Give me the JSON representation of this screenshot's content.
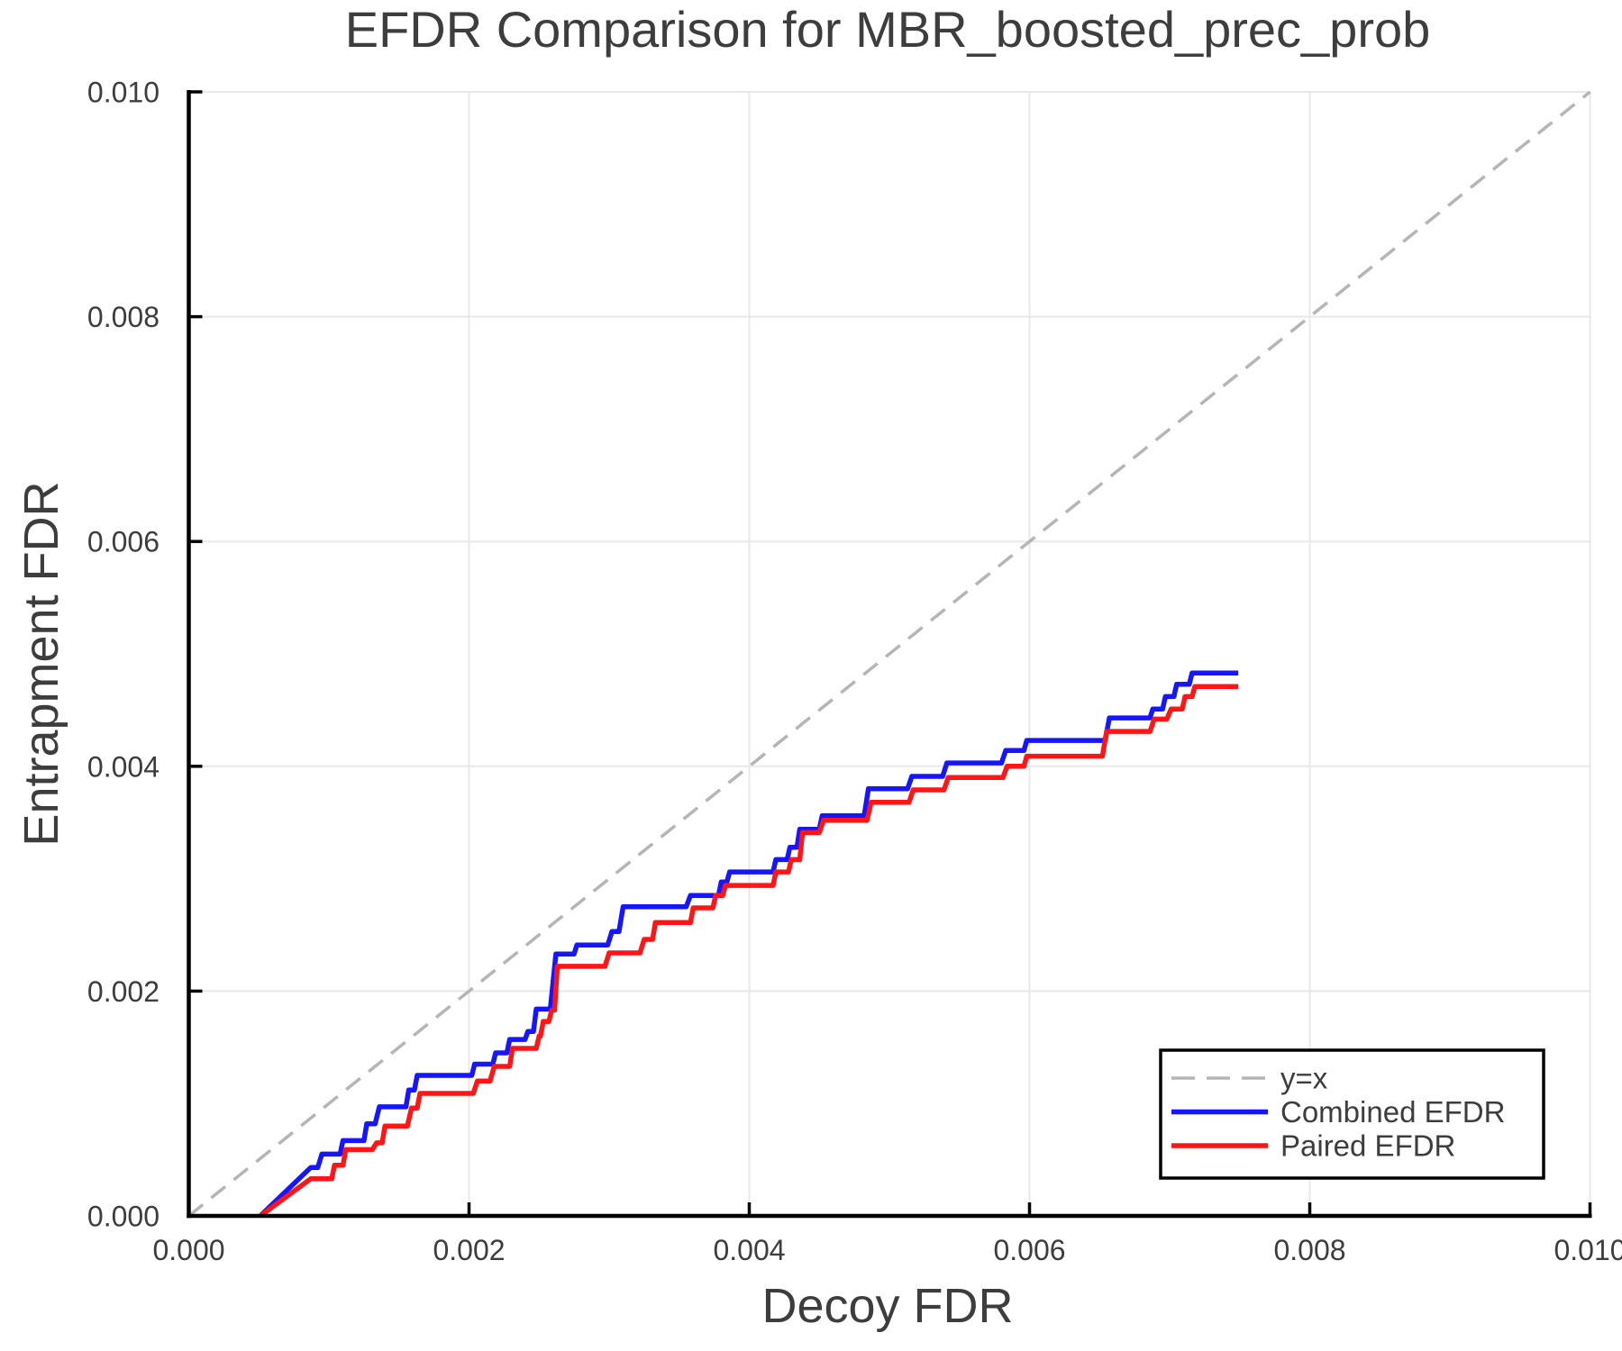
{
  "page": {
    "background": "#ffffff"
  },
  "chart_data": {
    "type": "line",
    "title": "EFDR Comparison for MBR_boosted_prec_prob",
    "xlabel": "Decoy FDR",
    "ylabel": "Entrapment FDR",
    "xlim": [
      0.0,
      0.01
    ],
    "ylim": [
      0.0,
      0.01
    ],
    "grid": true,
    "xticks": {
      "values": [
        0.0,
        0.002,
        0.004,
        0.006,
        0.008,
        0.01
      ],
      "labels": [
        "0.000",
        "0.002",
        "0.004",
        "0.006",
        "0.008",
        "0.010"
      ]
    },
    "yticks": {
      "values": [
        0.0,
        0.002,
        0.004,
        0.006,
        0.008,
        0.01
      ],
      "labels": [
        "0.000",
        "0.002",
        "0.004",
        "0.006",
        "0.008",
        "0.010"
      ]
    },
    "colors": {
      "grid": "#e8e8e8",
      "axis": "#000000",
      "text": "#3d3d3d",
      "reference": "#b5b5b5",
      "combined": "#1515ff",
      "paired": "#ff1515",
      "legend_background": "#ffffff",
      "legend_border": "#000000"
    },
    "legend": {
      "position": "lower-right",
      "entries": [
        "y=x",
        "Combined EFDR",
        "Paired EFDR"
      ]
    },
    "series": [
      {
        "id": "yx-reference-line",
        "name": "y=x",
        "linestyle": "dashed",
        "color": "#b5b5b5",
        "points": [
          [
            0.0,
            0.0
          ],
          [
            0.01,
            0.01
          ]
        ]
      },
      {
        "id": "combined-efdr-line",
        "name": "Combined EFDR",
        "linestyle": "solid",
        "color": "#1515ff",
        "points": [
          [
            0.00051,
            0.0
          ],
          [
            0.00087,
            0.00043
          ],
          [
            0.00092,
            0.00043
          ],
          [
            0.00095,
            0.00055
          ],
          [
            0.00108,
            0.00055
          ],
          [
            0.0011,
            0.00067
          ],
          [
            0.00125,
            0.00067
          ],
          [
            0.00127,
            0.00082
          ],
          [
            0.00133,
            0.00082
          ],
          [
            0.00136,
            0.00097
          ],
          [
            0.00155,
            0.00097
          ],
          [
            0.00157,
            0.00112
          ],
          [
            0.00161,
            0.00112
          ],
          [
            0.00163,
            0.00125
          ],
          [
            0.00202,
            0.00125
          ],
          [
            0.00204,
            0.00135
          ],
          [
            0.00217,
            0.00135
          ],
          [
            0.00219,
            0.00145
          ],
          [
            0.00227,
            0.00145
          ],
          [
            0.00229,
            0.00157
          ],
          [
            0.0024,
            0.00157
          ],
          [
            0.00242,
            0.00164
          ],
          [
            0.00246,
            0.00164
          ],
          [
            0.00248,
            0.00184
          ],
          [
            0.00258,
            0.00184
          ],
          [
            0.00262,
            0.00233
          ],
          [
            0.00275,
            0.00233
          ],
          [
            0.00277,
            0.00241
          ],
          [
            0.00299,
            0.00241
          ],
          [
            0.00302,
            0.00253
          ],
          [
            0.00307,
            0.00253
          ],
          [
            0.0031,
            0.00275
          ],
          [
            0.00355,
            0.00275
          ],
          [
            0.00358,
            0.00285
          ],
          [
            0.00378,
            0.00285
          ],
          [
            0.0038,
            0.00297
          ],
          [
            0.00384,
            0.00297
          ],
          [
            0.00386,
            0.00306
          ],
          [
            0.00417,
            0.00306
          ],
          [
            0.00419,
            0.00317
          ],
          [
            0.00427,
            0.00317
          ],
          [
            0.00429,
            0.00328
          ],
          [
            0.00434,
            0.00328
          ],
          [
            0.00436,
            0.00344
          ],
          [
            0.0045,
            0.00344
          ],
          [
            0.00452,
            0.00356
          ],
          [
            0.00482,
            0.00356
          ],
          [
            0.00485,
            0.0038
          ],
          [
            0.00513,
            0.0038
          ],
          [
            0.00516,
            0.00391
          ],
          [
            0.00538,
            0.00391
          ],
          [
            0.00541,
            0.00403
          ],
          [
            0.0058,
            0.00403
          ],
          [
            0.00583,
            0.00414
          ],
          [
            0.00596,
            0.00414
          ],
          [
            0.00598,
            0.00423
          ],
          [
            0.00654,
            0.00423
          ],
          [
            0.00657,
            0.00443
          ],
          [
            0.00686,
            0.00443
          ],
          [
            0.00688,
            0.00451
          ],
          [
            0.00695,
            0.00451
          ],
          [
            0.00697,
            0.00462
          ],
          [
            0.00703,
            0.00462
          ],
          [
            0.00705,
            0.00473
          ],
          [
            0.00714,
            0.00473
          ],
          [
            0.00716,
            0.00483
          ],
          [
            0.00749,
            0.00483
          ]
        ]
      },
      {
        "id": "paired-efdr-line",
        "name": "Paired EFDR",
        "linestyle": "solid",
        "color": "#ff1515",
        "points": [
          [
            0.00051,
            0.0
          ],
          [
            0.00087,
            0.00033
          ],
          [
            0.00102,
            0.00033
          ],
          [
            0.00104,
            0.00045
          ],
          [
            0.0011,
            0.00045
          ],
          [
            0.00112,
            0.00059
          ],
          [
            0.00131,
            0.00059
          ],
          [
            0.00134,
            0.00065
          ],
          [
            0.00138,
            0.00065
          ],
          [
            0.0014,
            0.0008
          ],
          [
            0.00156,
            0.0008
          ],
          [
            0.00159,
            0.00096
          ],
          [
            0.00163,
            0.00096
          ],
          [
            0.00165,
            0.00109
          ],
          [
            0.00203,
            0.00109
          ],
          [
            0.00206,
            0.0012
          ],
          [
            0.00215,
            0.0012
          ],
          [
            0.00218,
            0.00133
          ],
          [
            0.00229,
            0.00133
          ],
          [
            0.00231,
            0.00149
          ],
          [
            0.00248,
            0.00149
          ],
          [
            0.0025,
            0.0016
          ],
          [
            0.00251,
            0.0016
          ],
          [
            0.00253,
            0.00173
          ],
          [
            0.00257,
            0.00173
          ],
          [
            0.00259,
            0.00183
          ],
          [
            0.00261,
            0.00183
          ],
          [
            0.00263,
            0.00222
          ],
          [
            0.00297,
            0.00222
          ],
          [
            0.003,
            0.00234
          ],
          [
            0.00322,
            0.00234
          ],
          [
            0.00325,
            0.00246
          ],
          [
            0.00331,
            0.00246
          ],
          [
            0.00333,
            0.00261
          ],
          [
            0.00358,
            0.00261
          ],
          [
            0.0036,
            0.00274
          ],
          [
            0.00374,
            0.00274
          ],
          [
            0.00376,
            0.00285
          ],
          [
            0.00381,
            0.00285
          ],
          [
            0.00383,
            0.00294
          ],
          [
            0.00417,
            0.00294
          ],
          [
            0.00419,
            0.00306
          ],
          [
            0.00428,
            0.00306
          ],
          [
            0.0043,
            0.00317
          ],
          [
            0.00436,
            0.00317
          ],
          [
            0.00438,
            0.00341
          ],
          [
            0.0045,
            0.00341
          ],
          [
            0.00453,
            0.00352
          ],
          [
            0.00484,
            0.00352
          ],
          [
            0.00487,
            0.00368
          ],
          [
            0.00514,
            0.00368
          ],
          [
            0.00517,
            0.00379
          ],
          [
            0.00539,
            0.00379
          ],
          [
            0.00542,
            0.0039
          ],
          [
            0.00581,
            0.0039
          ],
          [
            0.00584,
            0.004
          ],
          [
            0.00596,
            0.004
          ],
          [
            0.00598,
            0.00409
          ],
          [
            0.00652,
            0.00409
          ],
          [
            0.00655,
            0.00431
          ],
          [
            0.00686,
            0.00431
          ],
          [
            0.00689,
            0.00442
          ],
          [
            0.00698,
            0.00442
          ],
          [
            0.00701,
            0.00451
          ],
          [
            0.00709,
            0.00451
          ],
          [
            0.00711,
            0.00462
          ],
          [
            0.00716,
            0.00462
          ],
          [
            0.00718,
            0.00471
          ],
          [
            0.00749,
            0.00471
          ]
        ]
      }
    ]
  }
}
